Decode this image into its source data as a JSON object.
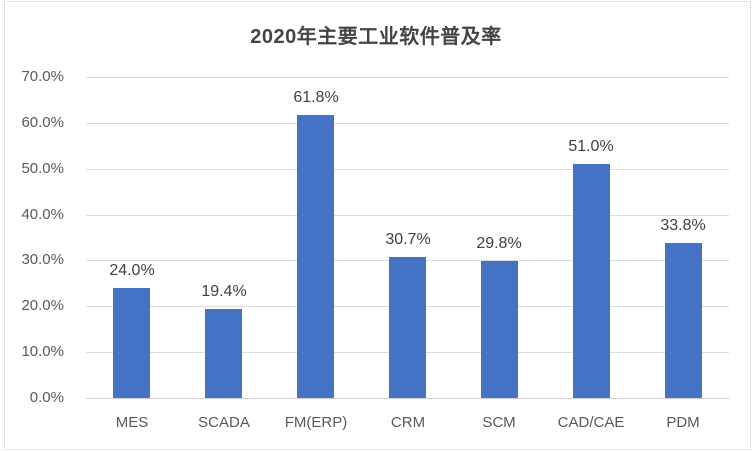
{
  "chart_data": {
    "type": "bar",
    "title": "2020年主要工业软件普及率",
    "categories": [
      "MES",
      "SCADA",
      "FM(ERP)",
      "CRM",
      "SCM",
      "CAD/CAE",
      "PDM"
    ],
    "values": [
      24.0,
      19.4,
      61.8,
      30.7,
      29.8,
      51.0,
      33.8
    ],
    "data_labels": [
      "24.0%",
      "19.4%",
      "61.8%",
      "30.7%",
      "29.8%",
      "51.0%",
      "33.8%"
    ],
    "ytick_labels": [
      "0.0%",
      "10.0%",
      "20.0%",
      "30.0%",
      "40.0%",
      "50.0%",
      "60.0%",
      "70.0%"
    ],
    "ylim": [
      0,
      70
    ],
    "ytick_step": 10,
    "xlabel": "",
    "ylabel": "",
    "grid": "horizontal",
    "legend": "none",
    "bar_color": "#4472C4",
    "gridline_color": "#DCDCDC",
    "axis_line_color": "#CFCFCF",
    "axis_text_color": "#595959",
    "data_label_color": "#404040",
    "title_color": "#444444",
    "background_color": "#FFFFFF",
    "border_color": "#C9C9C9"
  }
}
